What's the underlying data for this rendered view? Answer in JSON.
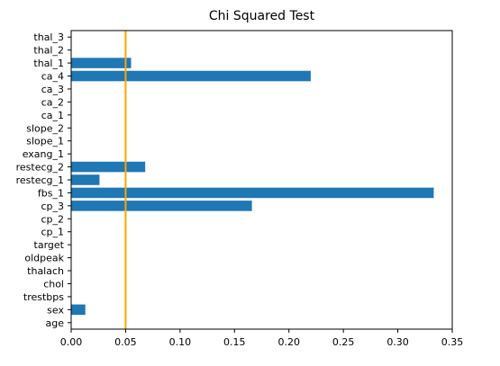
{
  "chart_data": {
    "type": "bar",
    "orientation": "horizontal",
    "title": "Chi Squared Test",
    "xlabel": "",
    "ylabel": "",
    "xlim": [
      0,
      0.35
    ],
    "xticks": [
      0.0,
      0.05,
      0.1,
      0.15,
      0.2,
      0.25,
      0.3,
      0.35
    ],
    "xtick_labels": [
      "0.00",
      "0.05",
      "0.10",
      "0.15",
      "0.20",
      "0.25",
      "0.30",
      "0.35"
    ],
    "categories": [
      "age",
      "sex",
      "trestbps",
      "chol",
      "thalach",
      "oldpeak",
      "target",
      "cp_1",
      "cp_2",
      "cp_3",
      "fbs_1",
      "restecg_1",
      "restecg_2",
      "exang_1",
      "slope_1",
      "slope_2",
      "ca_1",
      "ca_2",
      "ca_3",
      "ca_4",
      "thal_1",
      "thal_2",
      "thal_3"
    ],
    "values": [
      0,
      0.013,
      0,
      0,
      0,
      0,
      0,
      0,
      0,
      0.166,
      0.333,
      0.026,
      0.068,
      0,
      0,
      0,
      0,
      0,
      0,
      0.22,
      0.055,
      0,
      0
    ],
    "bar_color": "#1f77b4",
    "reference_line": {
      "orientation": "vertical",
      "value": 0.05,
      "color": "#ffa500"
    },
    "grid": false,
    "legend": "none"
  }
}
